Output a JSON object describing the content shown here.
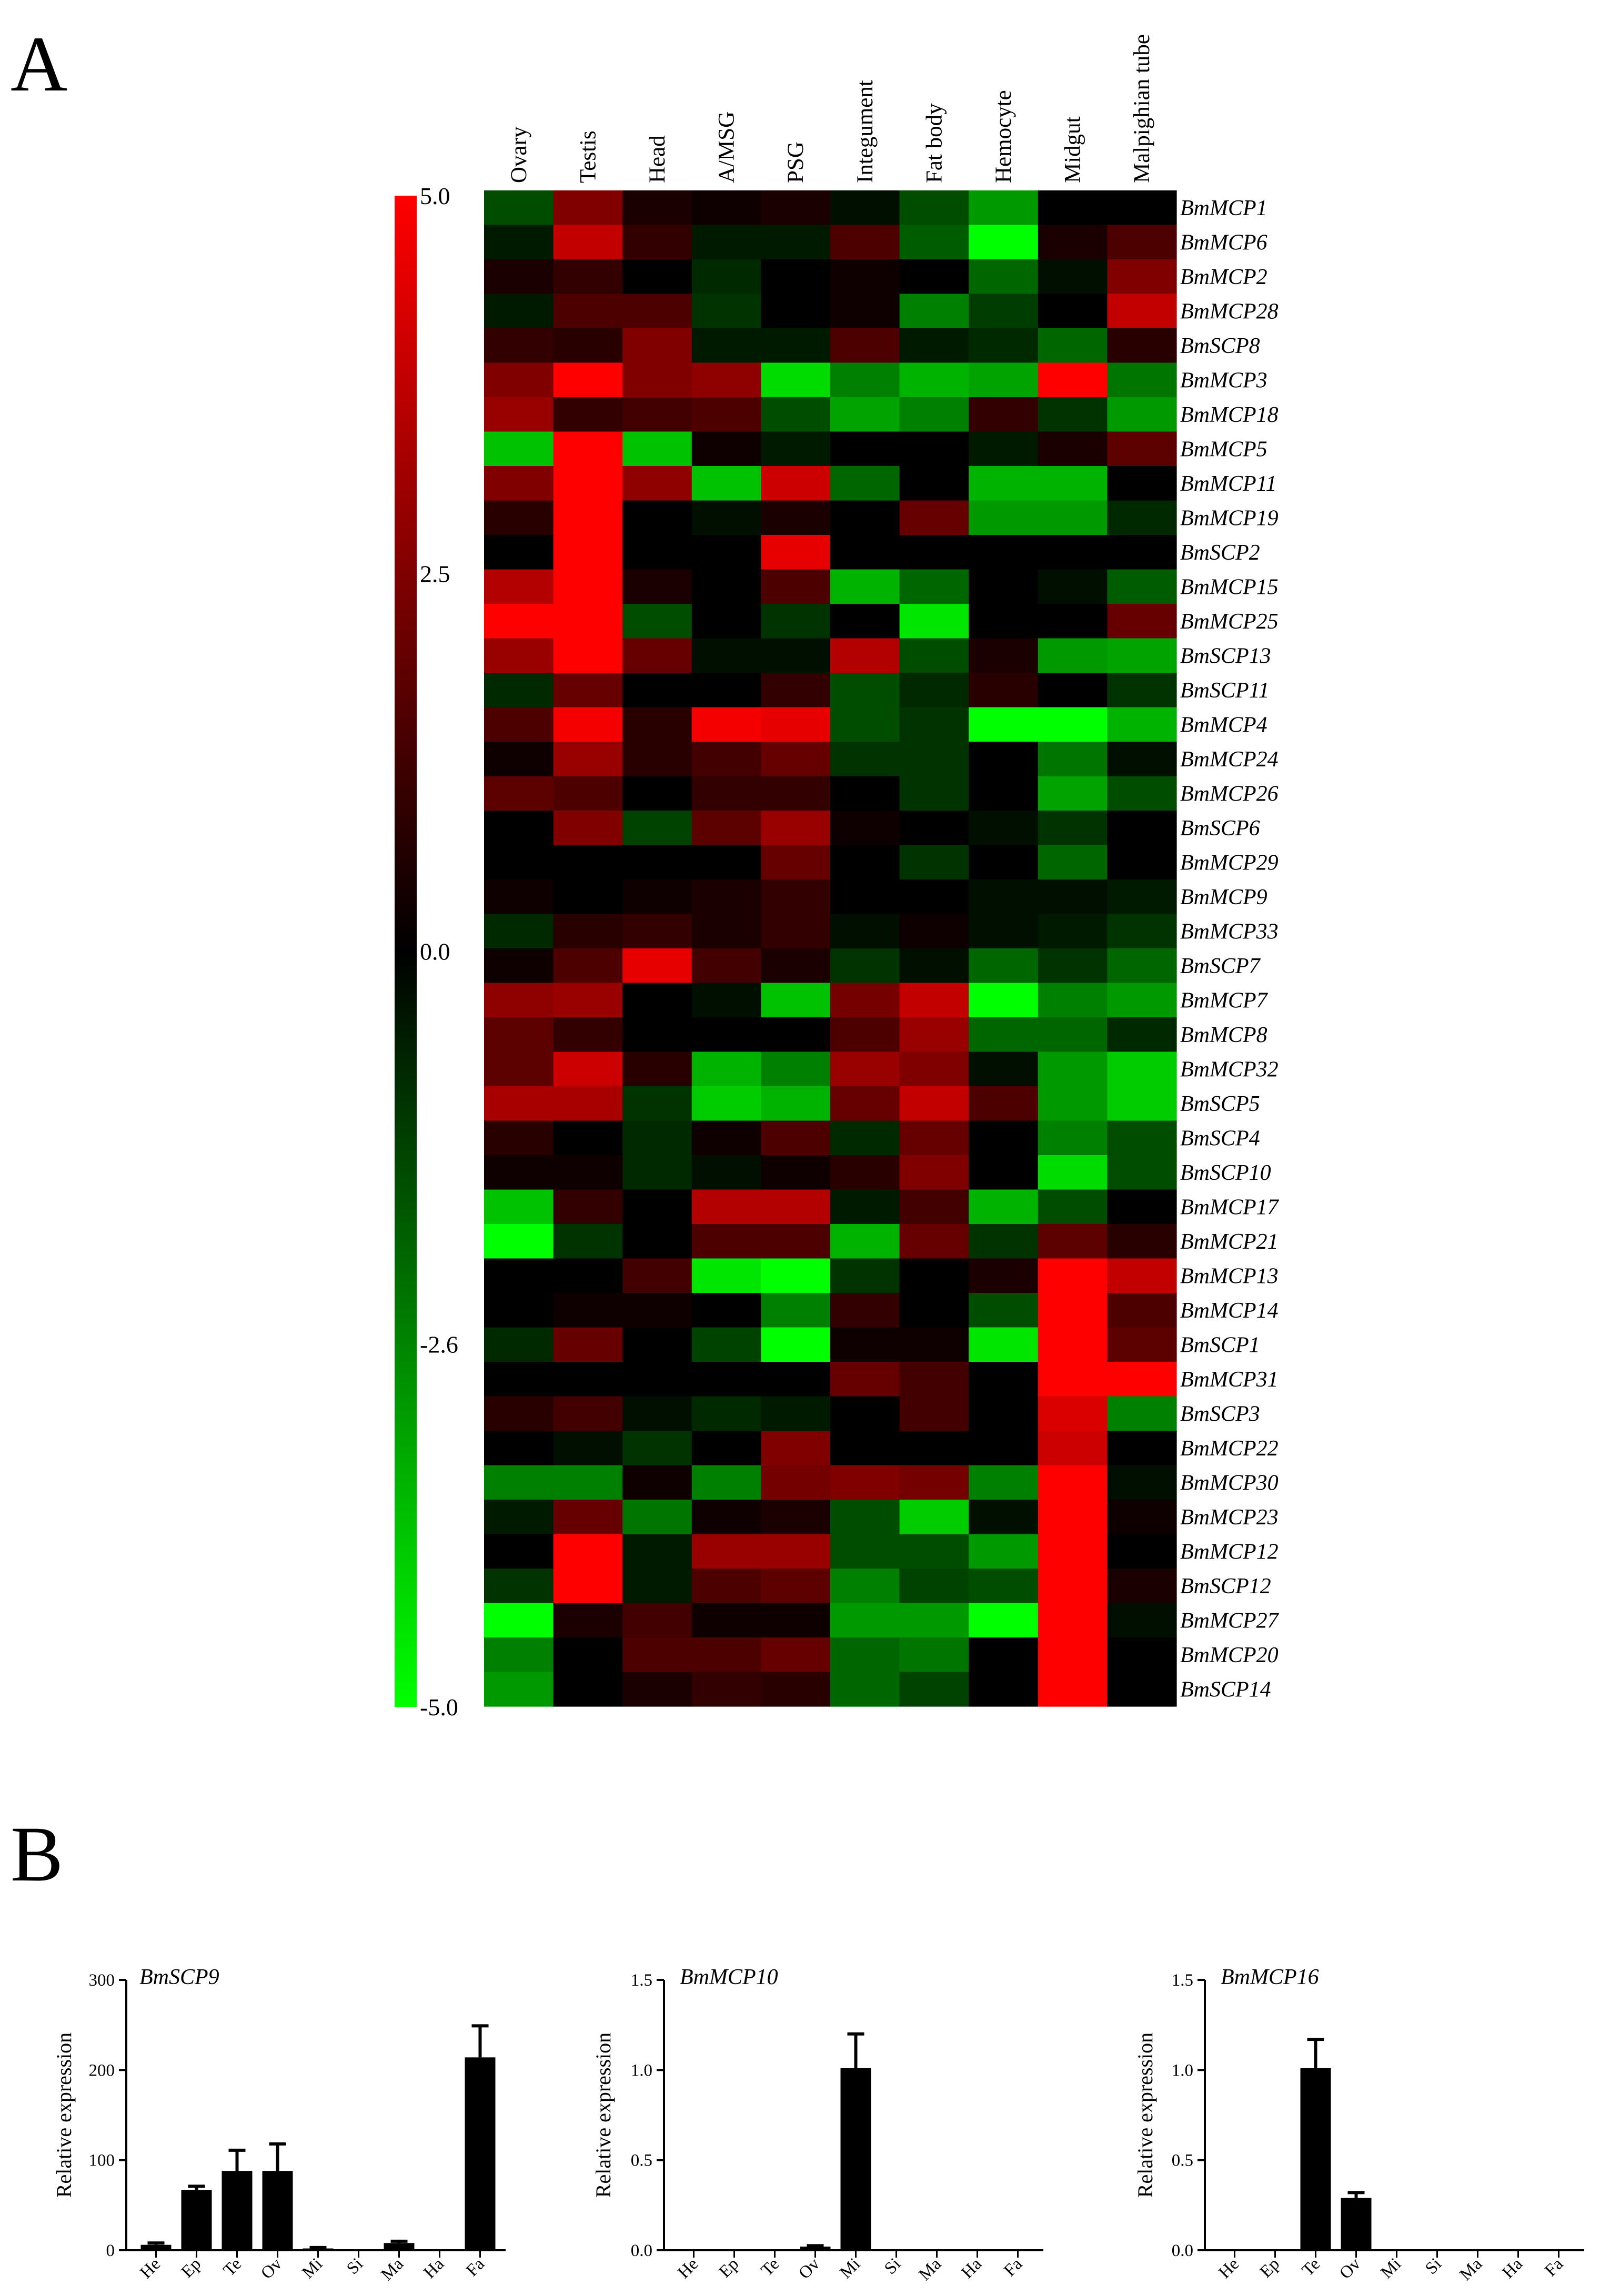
{
  "panels": {
    "a": "A",
    "b": "B"
  },
  "chart_data": [
    {
      "type": "heatmap",
      "columns": [
        "Ovary",
        "Testis",
        "Head",
        "A/MSG",
        "PSG",
        "Integument",
        "Fat body",
        "Hemocyte",
        "Midgut",
        "Malpighian tube"
      ],
      "rows": [
        "BmMCP1",
        "BmMCP6",
        "BmMCP2",
        "BmMCP28",
        "BmSCP8",
        "BmMCP3",
        "BmMCP18",
        "BmMCP5",
        "BmMCP11",
        "BmMCP19",
        "BmSCP2",
        "BmMCP15",
        "BmMCP25",
        "BmSCP13",
        "BmSCP11",
        "BmMCP4",
        "BmMCP24",
        "BmMCP26",
        "BmSCP6",
        "BmMCP29",
        "BmMCP9",
        "BmMCP33",
        "BmSCP7",
        "BmMCP7",
        "BmMCP8",
        "BmMCP32",
        "BmSCP5",
        "BmSCP4",
        "BmSCP10",
        "BmMCP17",
        "BmMCP21",
        "BmMCP13",
        "BmMCP14",
        "BmSCP1",
        "BmMCP31",
        "BmSCP3",
        "BmMCP22",
        "BmMCP30",
        "BmMCP23",
        "BmMCP12",
        "BmSCP12",
        "BmMCP27",
        "BmMCP20",
        "BmSCP14"
      ],
      "values": [
        [
          -1.5,
          2.5,
          0.5,
          0.3,
          0.5,
          -0.3,
          -1.5,
          -3.0,
          0.0,
          0.0
        ],
        [
          -0.5,
          3.8,
          1.0,
          -0.5,
          -0.5,
          1.5,
          -1.8,
          -5.0,
          0.5,
          1.5
        ],
        [
          0.5,
          1.0,
          0.0,
          -0.8,
          0.0,
          0.3,
          0.0,
          -2.0,
          -0.3,
          2.5
        ],
        [
          -0.5,
          1.5,
          1.5,
          -1.0,
          0.0,
          0.3,
          -2.5,
          -1.2,
          0.0,
          3.8
        ],
        [
          1.0,
          0.8,
          2.5,
          -0.5,
          -0.5,
          1.5,
          -0.5,
          -0.8,
          -2.0,
          0.8
        ],
        [
          2.5,
          5.0,
          2.5,
          2.8,
          -4.3,
          -2.5,
          -3.5,
          -3.2,
          5.0,
          -2.3
        ],
        [
          3.0,
          1.0,
          1.3,
          1.5,
          -1.5,
          -3.2,
          -2.5,
          1.0,
          -1.0,
          -3.0
        ],
        [
          -3.8,
          5.0,
          -3.8,
          0.3,
          -0.5,
          0.0,
          0.0,
          -0.5,
          0.5,
          1.8
        ],
        [
          2.5,
          5.0,
          2.8,
          -3.8,
          4.0,
          -2.0,
          0.0,
          -3.5,
          -3.5,
          0.0
        ],
        [
          0.8,
          5.0,
          0.0,
          -0.3,
          0.5,
          0.0,
          2.0,
          -3.0,
          -3.0,
          -0.8
        ],
        [
          0.0,
          5.0,
          0.0,
          0.0,
          4.5,
          0.0,
          0.0,
          0.0,
          0.0,
          0.0
        ],
        [
          3.5,
          5.0,
          0.5,
          0.0,
          1.5,
          -3.5,
          -2.0,
          0.0,
          -0.3,
          -1.8
        ],
        [
          5.0,
          5.0,
          -1.5,
          0.0,
          -1.0,
          0.0,
          -4.5,
          0.0,
          0.0,
          2.0
        ],
        [
          3.0,
          5.0,
          2.0,
          -0.3,
          -0.3,
          3.5,
          -1.5,
          0.5,
          -3.0,
          -3.2
        ],
        [
          -0.8,
          2.0,
          0.0,
          0.0,
          1.0,
          -1.5,
          -0.8,
          0.8,
          0.0,
          -1.0
        ],
        [
          1.5,
          4.8,
          0.8,
          4.8,
          4.5,
          -1.5,
          -1.0,
          -5.0,
          -5.0,
          -3.5
        ],
        [
          0.3,
          3.0,
          0.8,
          1.3,
          2.0,
          -1.0,
          -1.0,
          0.0,
          -2.3,
          -0.3
        ],
        [
          1.8,
          1.5,
          0.0,
          1.0,
          1.0,
          0.0,
          -1.0,
          0.0,
          -3.2,
          -1.5
        ],
        [
          0.0,
          2.5,
          -1.3,
          1.8,
          3.0,
          0.3,
          0.0,
          -0.3,
          -1.0,
          0.0
        ],
        [
          0.0,
          0.0,
          0.0,
          0.0,
          2.0,
          0.0,
          -1.0,
          0.0,
          -2.0,
          0.0
        ],
        [
          0.3,
          0.0,
          0.3,
          0.5,
          1.0,
          0.0,
          0.0,
          -0.3,
          -0.3,
          -0.5
        ],
        [
          -0.8,
          0.8,
          1.0,
          0.5,
          1.0,
          -0.3,
          0.3,
          -0.3,
          -0.5,
          -1.0
        ],
        [
          0.3,
          1.5,
          4.5,
          1.3,
          0.5,
          -1.0,
          -0.3,
          -2.0,
          -1.0,
          -2.0
        ],
        [
          2.8,
          3.0,
          0.0,
          -0.3,
          -3.8,
          2.3,
          3.8,
          -5.0,
          -2.5,
          -3.0
        ],
        [
          1.8,
          1.0,
          0.0,
          0.0,
          0.0,
          1.5,
          3.0,
          -2.0,
          -2.0,
          -0.8
        ],
        [
          1.8,
          4.0,
          0.8,
          -3.5,
          -2.5,
          3.0,
          2.5,
          -0.3,
          -3.0,
          -4.0
        ],
        [
          3.3,
          3.3,
          -1.0,
          -4.0,
          -3.5,
          2.0,
          3.8,
          1.5,
          -3.0,
          -4.0
        ],
        [
          0.8,
          0.0,
          -0.8,
          0.3,
          1.5,
          -0.8,
          2.0,
          0.0,
          -2.5,
          -1.5
        ],
        [
          0.3,
          0.3,
          -0.8,
          -0.3,
          0.3,
          0.8,
          2.5,
          0.0,
          -4.3,
          -1.5
        ],
        [
          -3.8,
          1.0,
          0.0,
          3.5,
          3.5,
          -0.5,
          1.3,
          -3.5,
          -1.5,
          0.0
        ],
        [
          -5.0,
          -1.0,
          0.0,
          1.5,
          1.5,
          -3.5,
          2.0,
          -1.0,
          1.8,
          0.8
        ],
        [
          0.0,
          0.0,
          1.3,
          -4.5,
          -5.0,
          -1.0,
          0.0,
          0.5,
          5.0,
          3.8
        ],
        [
          0.0,
          0.3,
          0.3,
          0.0,
          -2.5,
          1.0,
          0.0,
          -1.5,
          5.0,
          1.5
        ],
        [
          -0.8,
          2.0,
          0.0,
          -1.3,
          -5.0,
          0.3,
          0.3,
          -4.5,
          5.0,
          1.8
        ],
        [
          0.0,
          0.0,
          0.0,
          0.0,
          0.0,
          2.0,
          1.3,
          0.0,
          5.0,
          5.0
        ],
        [
          0.8,
          1.3,
          -0.3,
          -0.8,
          -0.5,
          0.0,
          1.3,
          0.0,
          4.3,
          -2.5
        ],
        [
          0.0,
          -0.3,
          -1.0,
          0.0,
          2.5,
          0.0,
          0.0,
          0.0,
          4.0,
          0.0
        ],
        [
          -2.5,
          -2.5,
          0.3,
          -2.5,
          2.3,
          2.5,
          2.3,
          -2.5,
          5.0,
          -0.3
        ],
        [
          -0.5,
          2.0,
          -2.3,
          0.3,
          0.5,
          -1.5,
          -4.0,
          -0.3,
          5.0,
          0.3
        ],
        [
          0.0,
          5.0,
          -0.5,
          3.0,
          3.0,
          -1.5,
          -1.5,
          -3.0,
          5.0,
          0.0
        ],
        [
          -1.0,
          5.0,
          -0.5,
          1.5,
          1.8,
          -2.5,
          -1.3,
          -1.5,
          5.0,
          0.5
        ],
        [
          -5.0,
          0.5,
          1.3,
          0.3,
          0.3,
          -3.0,
          -3.0,
          -5.0,
          5.0,
          -0.3
        ],
        [
          -2.5,
          0.0,
          1.5,
          1.5,
          2.0,
          -2.0,
          -2.3,
          0.0,
          5.0,
          0.0
        ],
        [
          -3.0,
          0.0,
          0.5,
          1.0,
          0.8,
          -2.0,
          -1.3,
          0.0,
          5.0,
          0.0
        ]
      ],
      "color_scale": {
        "min": -5.0,
        "max": 5.0,
        "ticks": [
          "5.0",
          "2.5",
          "0.0",
          "-2.6",
          "-5.0"
        ],
        "low_color": "#00ff00",
        "mid_color": "#000000",
        "high_color": "#ff0000"
      }
    },
    {
      "type": "bar",
      "title": "BmSCP9",
      "ylabel": "Relative expression",
      "categories": [
        "He",
        "Ep",
        "Te",
        "Ov",
        "Mi",
        "Si",
        "Ma",
        "Ha",
        "Fa"
      ],
      "values": [
        6,
        67,
        88,
        88,
        2,
        1,
        8,
        0,
        214
      ],
      "errors": [
        2,
        4,
        23,
        30,
        1,
        0,
        2,
        0,
        35
      ],
      "ylim": [
        0,
        300
      ],
      "yticks": [
        "0",
        "100",
        "200",
        "300"
      ]
    },
    {
      "type": "bar",
      "title": "BmMCP10",
      "ylabel": "Relative expression",
      "categories": [
        "He",
        "Ep",
        "Te",
        "Ov",
        "Mi",
        "Si",
        "Ma",
        "Ha",
        "Fa"
      ],
      "values": [
        0.0,
        0.0,
        0.005,
        0.02,
        1.01,
        0.0,
        0.0,
        0.0,
        0.005
      ],
      "errors": [
        0,
        0,
        0,
        0.005,
        0.19,
        0,
        0,
        0,
        0
      ],
      "ylim": [
        0,
        1.5
      ],
      "yticks": [
        "0.0",
        "0.5",
        "1.0",
        "1.5"
      ]
    },
    {
      "type": "bar",
      "title": "BmMCP16",
      "ylabel": "Relative expression",
      "categories": [
        "He",
        "Ep",
        "Te",
        "Ov",
        "Mi",
        "Si",
        "Ma",
        "Ha",
        "Fa"
      ],
      "values": [
        0.005,
        0.0,
        1.01,
        0.29,
        0.0,
        0.0,
        0.005,
        0.0,
        0.005
      ],
      "errors": [
        0,
        0,
        0.16,
        0.03,
        0,
        0,
        0,
        0,
        0
      ],
      "ylim": [
        0,
        1.5
      ],
      "yticks": [
        "0.0",
        "0.5",
        "1.0",
        "1.5"
      ]
    }
  ]
}
